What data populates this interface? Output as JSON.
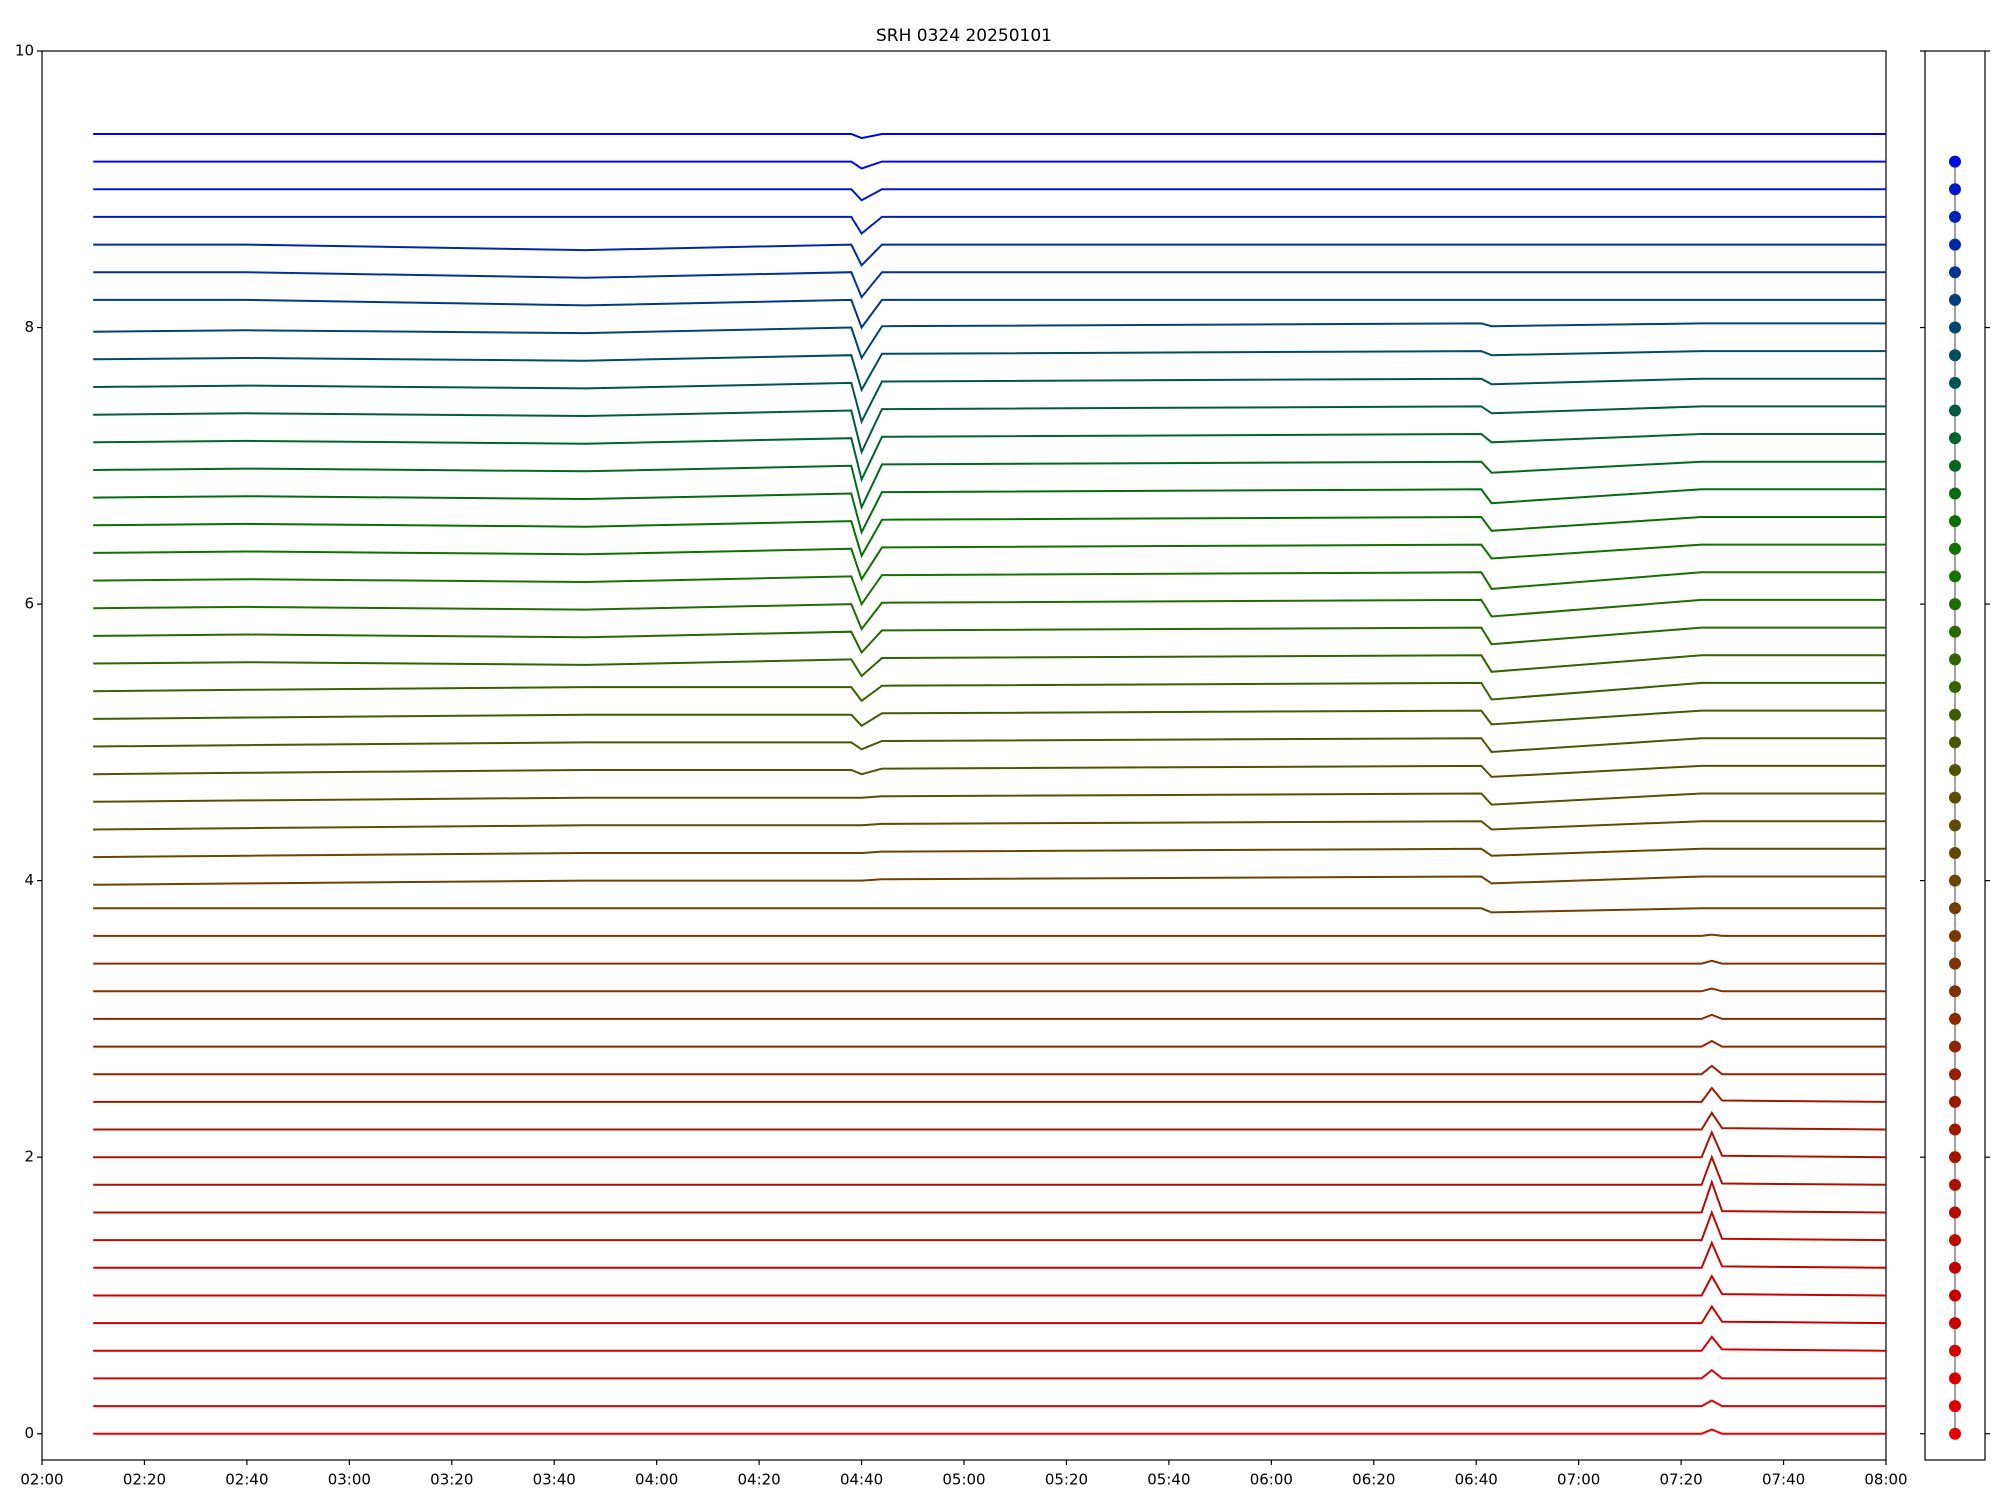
{
  "chart_data": [
    {
      "type": "line",
      "title": "SRH 0324 20250101",
      "x": [
        "02:10",
        "02:40",
        "03:46",
        "04:38",
        "04:40",
        "04:44",
        "06:41",
        "06:43",
        "07:24",
        "07:26",
        "07:28",
        "08:00"
      ],
      "xlim": [
        "02:00",
        "08:00"
      ],
      "xticks": [
        "02:00",
        "02:20",
        "02:40",
        "03:00",
        "03:20",
        "03:40",
        "04:00",
        "04:20",
        "04:40",
        "05:00",
        "05:20",
        "05:40",
        "06:00",
        "06:20",
        "06:40",
        "07:00",
        "07:20",
        "07:40",
        "08:00"
      ],
      "ylim": [
        -0.19,
        10
      ],
      "yticks": [
        0,
        2,
        4,
        6,
        8,
        10
      ],
      "series": [
        {
          "color": "#e60000",
          "values": [
            0,
            0,
            0,
            0,
            0,
            0,
            0,
            0,
            0,
            0.03,
            0,
            0
          ]
        },
        {
          "color": "#e00000",
          "values": [
            0.2,
            0.2,
            0.2,
            0.2,
            0.2,
            0.2,
            0.2,
            0.2,
            0.2,
            0.24,
            0.2,
            0.2
          ]
        },
        {
          "color": "#d80000",
          "values": [
            0.4,
            0.4,
            0.4,
            0.4,
            0.4,
            0.4,
            0.4,
            0.4,
            0.4,
            0.46,
            0.4,
            0.4
          ]
        },
        {
          "color": "#d00000",
          "values": [
            0.6,
            0.6,
            0.6,
            0.6,
            0.6,
            0.6,
            0.6,
            0.6,
            0.6,
            0.7,
            0.61,
            0.6
          ]
        },
        {
          "color": "#c80000",
          "values": [
            0.8,
            0.8,
            0.8,
            0.8,
            0.8,
            0.8,
            0.8,
            0.8,
            0.8,
            0.92,
            0.81,
            0.8
          ]
        },
        {
          "color": "#c40200",
          "values": [
            1,
            1,
            1,
            1,
            1,
            1,
            1,
            1,
            1,
            1.14,
            1.01,
            1
          ]
        },
        {
          "color": "#be0400",
          "values": [
            1.2,
            1.2,
            1.2,
            1.2,
            1.2,
            1.2,
            1.2,
            1.2,
            1.2,
            1.38,
            1.21,
            1.2
          ]
        },
        {
          "color": "#b80800",
          "values": [
            1.4,
            1.4,
            1.4,
            1.4,
            1.4,
            1.4,
            1.4,
            1.4,
            1.4,
            1.6,
            1.41,
            1.4
          ]
        },
        {
          "color": "#b20c00",
          "values": [
            1.6,
            1.6,
            1.6,
            1.6,
            1.6,
            1.6,
            1.6,
            1.6,
            1.6,
            1.82,
            1.61,
            1.6
          ]
        },
        {
          "color": "#ac1000",
          "values": [
            1.8,
            1.8,
            1.8,
            1.8,
            1.8,
            1.8,
            1.8,
            1.8,
            1.8,
            2,
            1.81,
            1.8
          ]
        },
        {
          "color": "#a61400",
          "values": [
            2,
            2,
            2,
            2,
            2,
            2,
            2,
            2,
            2,
            2.18,
            2.01,
            2
          ]
        },
        {
          "color": "#a01800",
          "values": [
            2.2,
            2.2,
            2.2,
            2.2,
            2.2,
            2.2,
            2.2,
            2.2,
            2.2,
            2.32,
            2.21,
            2.2
          ]
        },
        {
          "color": "#9a1c00",
          "values": [
            2.4,
            2.4,
            2.4,
            2.4,
            2.4,
            2.4,
            2.4,
            2.4,
            2.4,
            2.5,
            2.41,
            2.4
          ]
        },
        {
          "color": "#942000",
          "values": [
            2.6,
            2.6,
            2.6,
            2.6,
            2.6,
            2.6,
            2.6,
            2.6,
            2.6,
            2.66,
            2.6,
            2.6
          ]
        },
        {
          "color": "#8e2600",
          "values": [
            2.8,
            2.8,
            2.8,
            2.8,
            2.8,
            2.8,
            2.8,
            2.8,
            2.8,
            2.84,
            2.8,
            2.8
          ]
        },
        {
          "color": "#882c00",
          "values": [
            3,
            3,
            3,
            3,
            3,
            3,
            3,
            3,
            3,
            3.03,
            3,
            3
          ]
        },
        {
          "color": "#823000",
          "values": [
            3.2,
            3.2,
            3.2,
            3.2,
            3.2,
            3.2,
            3.2,
            3.2,
            3.2,
            3.22,
            3.2,
            3.2
          ]
        },
        {
          "color": "#7c3400",
          "values": [
            3.4,
            3.4,
            3.4,
            3.4,
            3.4,
            3.4,
            3.4,
            3.4,
            3.4,
            3.42,
            3.4,
            3.4
          ]
        },
        {
          "color": "#763a00",
          "values": [
            3.6,
            3.6,
            3.6,
            3.6,
            3.6,
            3.6,
            3.6,
            3.6,
            3.6,
            3.61,
            3.6,
            3.6
          ]
        },
        {
          "color": "#704000",
          "values": [
            3.8,
            3.8,
            3.8,
            3.8,
            3.8,
            3.8,
            3.8,
            3.77,
            3.8,
            3.8,
            3.8,
            3.8
          ]
        },
        {
          "color": "#6a4400",
          "values": [
            3.97,
            3.98,
            4,
            4,
            4,
            4.01,
            4.03,
            3.98,
            4.03,
            4.03,
            4.03,
            4.03
          ]
        },
        {
          "color": "#644800",
          "values": [
            4.17,
            4.18,
            4.2,
            4.2,
            4.2,
            4.21,
            4.23,
            4.18,
            4.23,
            4.23,
            4.23,
            4.23
          ]
        },
        {
          "color": "#5e4c00",
          "values": [
            4.37,
            4.38,
            4.4,
            4.4,
            4.4,
            4.41,
            4.43,
            4.37,
            4.43,
            4.43,
            4.43,
            4.43
          ]
        },
        {
          "color": "#585000",
          "values": [
            4.57,
            4.58,
            4.6,
            4.6,
            4.6,
            4.61,
            4.63,
            4.55,
            4.63,
            4.63,
            4.63,
            4.63
          ]
        },
        {
          "color": "#505400",
          "values": [
            4.77,
            4.78,
            4.8,
            4.8,
            4.77,
            4.81,
            4.83,
            4.75,
            4.83,
            4.83,
            4.83,
            4.83
          ]
        },
        {
          "color": "#485800",
          "values": [
            4.97,
            4.98,
            5,
            5,
            4.95,
            5.01,
            5.03,
            4.93,
            5.03,
            5.03,
            5.03,
            5.03
          ]
        },
        {
          "color": "#405c00",
          "values": [
            5.17,
            5.18,
            5.2,
            5.2,
            5.12,
            5.21,
            5.23,
            5.13,
            5.23,
            5.23,
            5.23,
            5.23
          ]
        },
        {
          "color": "#386000",
          "values": [
            5.37,
            5.38,
            5.4,
            5.4,
            5.3,
            5.41,
            5.43,
            5.31,
            5.43,
            5.43,
            5.43,
            5.43
          ]
        },
        {
          "color": "#306400",
          "values": [
            5.57,
            5.58,
            5.56,
            5.6,
            5.48,
            5.61,
            5.63,
            5.51,
            5.63,
            5.63,
            5.63,
            5.63
          ]
        },
        {
          "color": "#286800",
          "values": [
            5.77,
            5.78,
            5.76,
            5.8,
            5.65,
            5.81,
            5.83,
            5.71,
            5.83,
            5.83,
            5.83,
            5.83
          ]
        },
        {
          "color": "#206c00",
          "values": [
            5.97,
            5.98,
            5.96,
            6,
            5.82,
            6.01,
            6.03,
            5.91,
            6.03,
            6.03,
            6.03,
            6.03
          ]
        },
        {
          "color": "#187000",
          "values": [
            6.17,
            6.18,
            6.16,
            6.2,
            6,
            6.21,
            6.23,
            6.11,
            6.23,
            6.23,
            6.23,
            6.23
          ]
        },
        {
          "color": "#107000",
          "values": [
            6.37,
            6.38,
            6.36,
            6.4,
            6.18,
            6.41,
            6.43,
            6.33,
            6.43,
            6.43,
            6.43,
            6.43
          ]
        },
        {
          "color": "#087000",
          "values": [
            6.57,
            6.58,
            6.56,
            6.6,
            6.35,
            6.61,
            6.63,
            6.53,
            6.63,
            6.63,
            6.63,
            6.63
          ]
        },
        {
          "color": "#046c10",
          "values": [
            6.77,
            6.78,
            6.76,
            6.8,
            6.52,
            6.81,
            6.83,
            6.73,
            6.83,
            6.83,
            6.83,
            6.83
          ]
        },
        {
          "color": "#026820",
          "values": [
            6.97,
            6.98,
            6.96,
            7,
            6.7,
            7.01,
            7.03,
            6.95,
            7.03,
            7.03,
            7.03,
            7.03
          ]
        },
        {
          "color": "#006430",
          "values": [
            7.17,
            7.18,
            7.16,
            7.2,
            6.9,
            7.21,
            7.23,
            7.17,
            7.23,
            7.23,
            7.23,
            7.23
          ]
        },
        {
          "color": "#005c40",
          "values": [
            7.37,
            7.38,
            7.36,
            7.4,
            7.1,
            7.41,
            7.43,
            7.38,
            7.43,
            7.43,
            7.43,
            7.43
          ]
        },
        {
          "color": "#005450",
          "values": [
            7.57,
            7.58,
            7.56,
            7.6,
            7.32,
            7.61,
            7.63,
            7.59,
            7.63,
            7.63,
            7.63,
            7.63
          ]
        },
        {
          "color": "#004c60",
          "values": [
            7.77,
            7.78,
            7.76,
            7.8,
            7.55,
            7.81,
            7.83,
            7.8,
            7.83,
            7.83,
            7.83,
            7.83
          ]
        },
        {
          "color": "#004470",
          "values": [
            7.97,
            7.98,
            7.96,
            8,
            7.78,
            8.01,
            8.03,
            8.01,
            8.03,
            8.03,
            8.03,
            8.03
          ]
        },
        {
          "color": "#003c80",
          "values": [
            8.2,
            8.2,
            8.16,
            8.2,
            8,
            8.2,
            8.2,
            8.2,
            8.2,
            8.2,
            8.2,
            8.2
          ]
        },
        {
          "color": "#003490",
          "values": [
            8.4,
            8.4,
            8.36,
            8.4,
            8.22,
            8.4,
            8.4,
            8.4,
            8.4,
            8.4,
            8.4,
            8.4
          ]
        },
        {
          "color": "#0028a0",
          "values": [
            8.6,
            8.6,
            8.56,
            8.6,
            8.45,
            8.6,
            8.6,
            8.6,
            8.6,
            8.6,
            8.6,
            8.6
          ]
        },
        {
          "color": "#0020b8",
          "values": [
            8.8,
            8.8,
            8.8,
            8.8,
            8.68,
            8.8,
            8.8,
            8.8,
            8.8,
            8.8,
            8.8,
            8.8
          ]
        },
        {
          "color": "#0018c8",
          "values": [
            9,
            9,
            9,
            9,
            8.92,
            9,
            9,
            9,
            9,
            9,
            9,
            9
          ]
        },
        {
          "color": "#000ce0",
          "values": [
            9.2,
            9.2,
            9.2,
            9.2,
            9.15,
            9.2,
            9.2,
            9.2,
            9.2,
            9.2,
            9.2,
            9.2
          ]
        },
        {
          "color": "#0000f0",
          "values": [
            9.4,
            9.4,
            9.4,
            9.4,
            9.37,
            9.4,
            9.4,
            9.4,
            9.4,
            9.4,
            9.4,
            9.4
          ]
        }
      ]
    },
    {
      "type": "scatter",
      "ylim": [
        -0.19,
        10
      ],
      "yticks": [
        0,
        2,
        4,
        6,
        8,
        10
      ],
      "values": [
        0,
        0.2,
        0.4,
        0.6,
        0.8,
        1,
        1.2,
        1.4,
        1.6,
        1.8,
        2,
        2.2,
        2.4,
        2.6,
        2.8,
        3,
        3.2,
        3.4,
        3.6,
        3.8,
        4,
        4.2,
        4.4,
        4.6,
        4.8,
        5,
        5.2,
        5.4,
        5.6,
        5.8,
        6,
        6.2,
        6.4,
        6.6,
        6.8,
        7,
        7.2,
        7.4,
        7.6,
        7.8,
        8,
        8.2,
        8.4,
        8.6,
        8.8,
        9,
        9.2
      ]
    }
  ]
}
